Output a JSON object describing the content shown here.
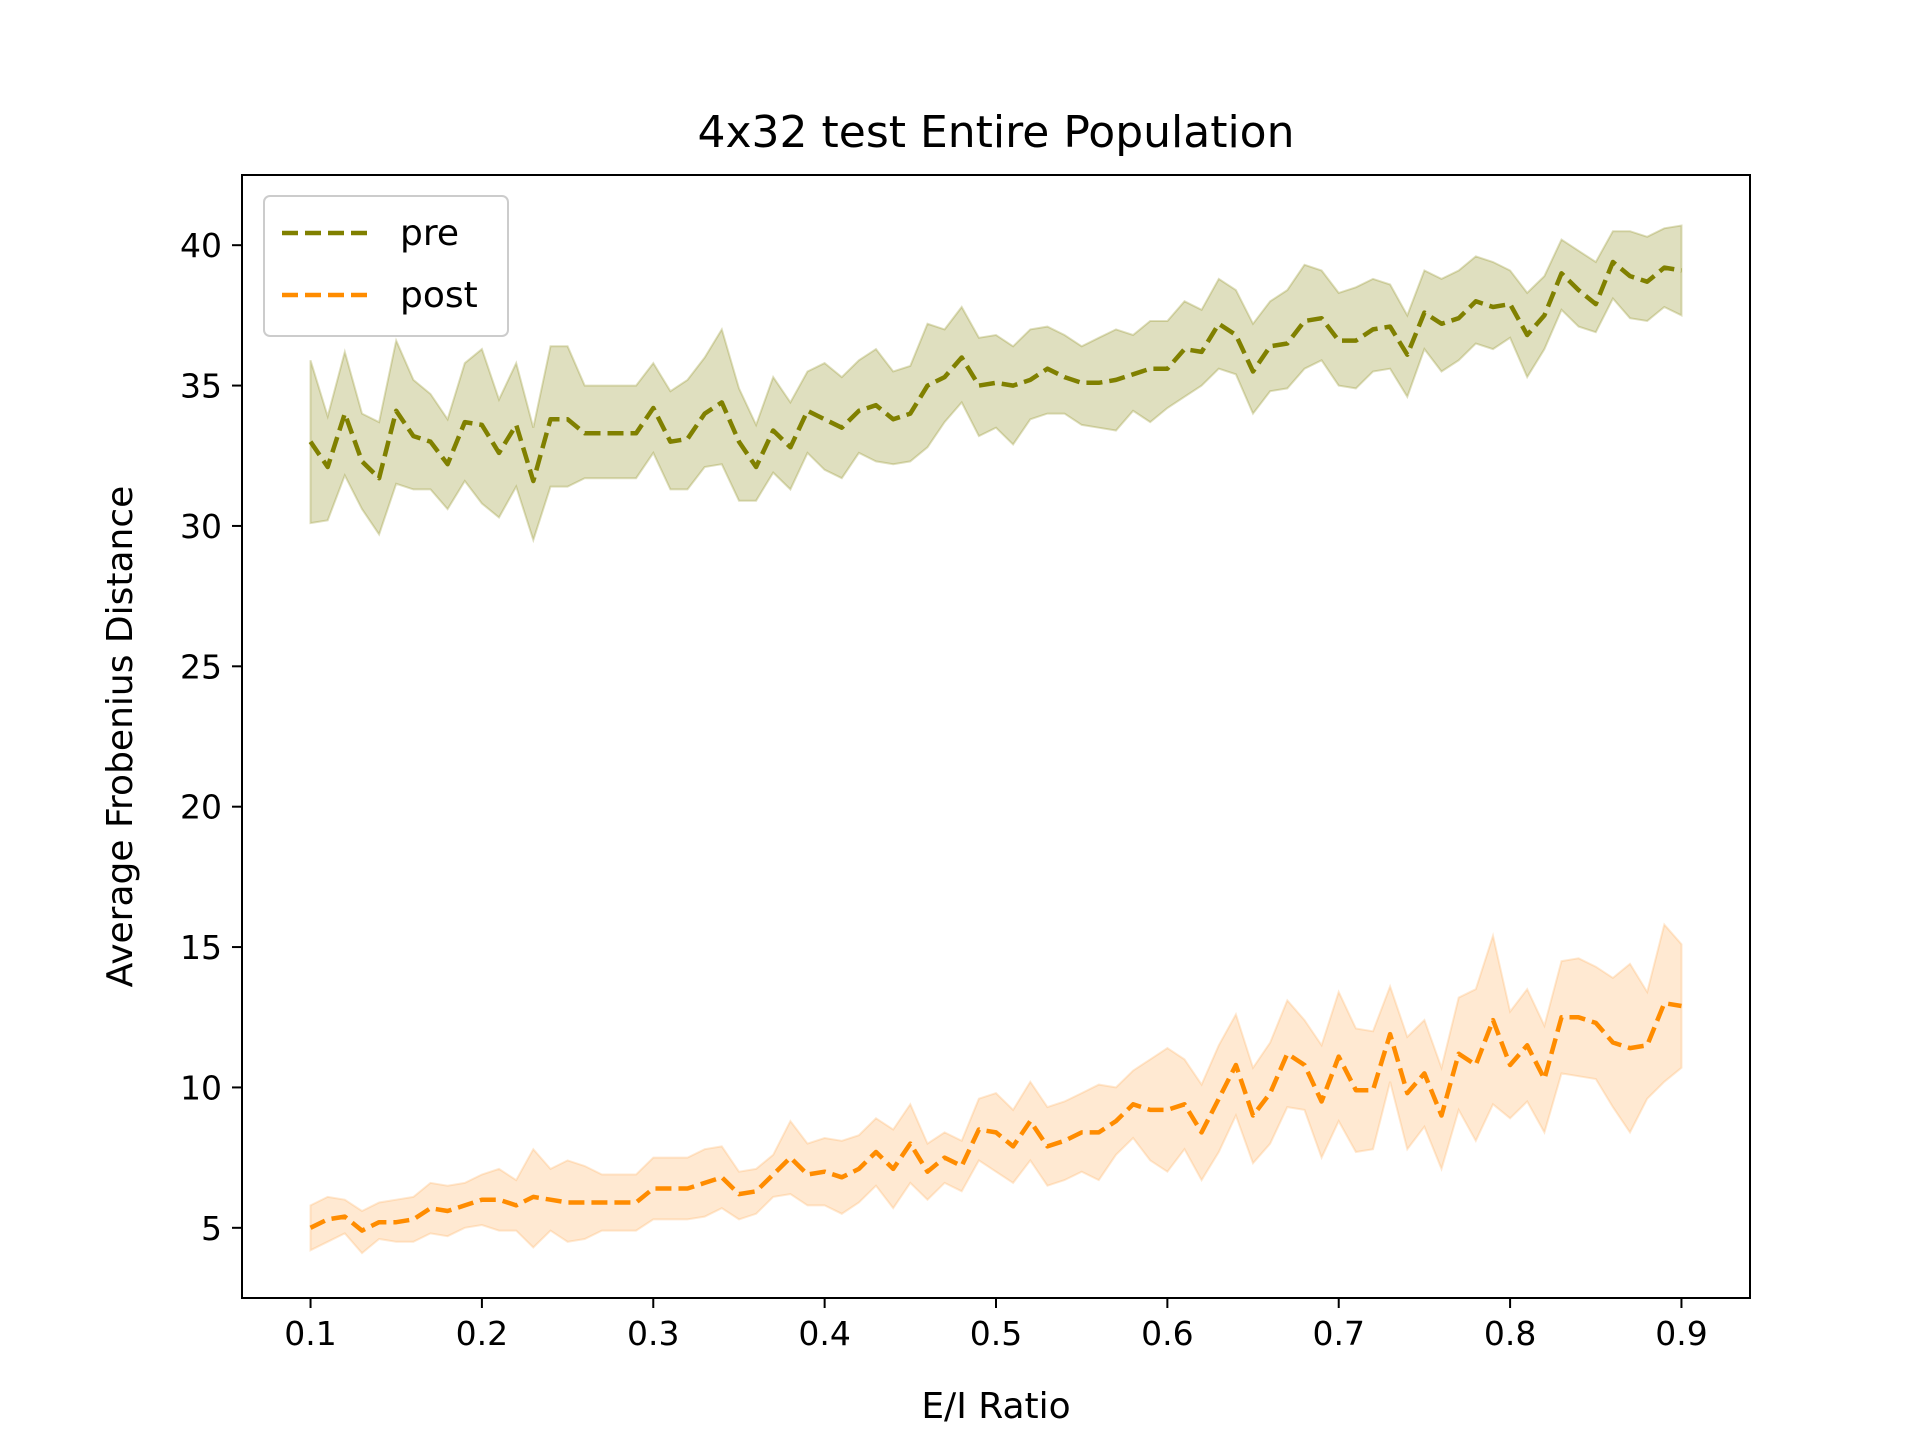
{
  "chart_data": {
    "type": "line",
    "title": "4x32 test Entire Population",
    "xlabel": "E/I Ratio",
    "ylabel": "Average Frobenius Distance",
    "xlim": [
      0.06,
      0.94
    ],
    "ylim": [
      2.5,
      42.5
    ],
    "xticks": [
      0.1,
      0.2,
      0.3,
      0.4,
      0.5,
      0.6,
      0.7,
      0.8,
      0.9
    ],
    "xtick_labels": [
      "0.1",
      "0.2",
      "0.3",
      "0.4",
      "0.5",
      "0.6",
      "0.7",
      "0.8",
      "0.9"
    ],
    "yticks": [
      5,
      10,
      15,
      20,
      25,
      30,
      35,
      40
    ],
    "ytick_labels": [
      "5",
      "10",
      "15",
      "20",
      "25",
      "30",
      "35",
      "40"
    ],
    "grid": false,
    "legend_position": "upper-left",
    "x": [
      0.1,
      0.11,
      0.12,
      0.13,
      0.14,
      0.15,
      0.16,
      0.17,
      0.18,
      0.19,
      0.2,
      0.21,
      0.22,
      0.23,
      0.24,
      0.25,
      0.26,
      0.27,
      0.28,
      0.29,
      0.3,
      0.31,
      0.32,
      0.33,
      0.34,
      0.35,
      0.36,
      0.37,
      0.38,
      0.39,
      0.4,
      0.41,
      0.42,
      0.43,
      0.44,
      0.45,
      0.46,
      0.47,
      0.48,
      0.49,
      0.5,
      0.51,
      0.52,
      0.53,
      0.54,
      0.55,
      0.56,
      0.57,
      0.58,
      0.59,
      0.6,
      0.61,
      0.62,
      0.63,
      0.64,
      0.65,
      0.66,
      0.67,
      0.68,
      0.69,
      0.7,
      0.71,
      0.72,
      0.73,
      0.74,
      0.75,
      0.76,
      0.77,
      0.78,
      0.79,
      0.8,
      0.81,
      0.82,
      0.83,
      0.84,
      0.85,
      0.86,
      0.87,
      0.88,
      0.89,
      0.9
    ],
    "series": [
      {
        "name": "pre",
        "color": "#808000",
        "fill_color": "#808000",
        "values": [
          33.0,
          32.1,
          34.0,
          32.3,
          31.7,
          34.1,
          33.2,
          33.0,
          32.2,
          33.7,
          33.6,
          32.6,
          33.6,
          31.6,
          33.8,
          33.8,
          33.3,
          33.3,
          33.3,
          33.3,
          34.2,
          33.0,
          33.1,
          34.0,
          34.4,
          33.0,
          32.1,
          33.4,
          32.8,
          34.1,
          33.8,
          33.5,
          34.1,
          34.3,
          33.8,
          34.0,
          35.0,
          35.3,
          36.0,
          35.0,
          35.1,
          35.0,
          35.2,
          35.6,
          35.3,
          35.1,
          35.1,
          35.2,
          35.4,
          35.6,
          35.6,
          36.3,
          36.2,
          37.2,
          36.8,
          35.5,
          36.4,
          36.5,
          37.3,
          37.4,
          36.6,
          36.6,
          37.0,
          37.1,
          36.1,
          37.6,
          37.2,
          37.4,
          38.0,
          37.8,
          37.9,
          36.8,
          37.5,
          39.0,
          38.4,
          37.9,
          39.4,
          38.9,
          38.7,
          39.2,
          39.1
        ],
        "upper": [
          35.9,
          33.9,
          36.2,
          34.0,
          33.7,
          36.6,
          35.2,
          34.7,
          33.8,
          35.8,
          36.3,
          34.5,
          35.8,
          33.5,
          36.4,
          36.4,
          35.0,
          35.0,
          35.0,
          35.0,
          35.8,
          34.8,
          35.2,
          36.0,
          37.0,
          34.9,
          33.6,
          35.3,
          34.4,
          35.5,
          35.8,
          35.3,
          35.9,
          36.3,
          35.5,
          35.7,
          37.2,
          37.0,
          37.8,
          36.7,
          36.8,
          36.4,
          37.0,
          37.1,
          36.8,
          36.4,
          36.7,
          37.0,
          36.8,
          37.3,
          37.3,
          38.0,
          37.7,
          38.8,
          38.4,
          37.2,
          38.0,
          38.4,
          39.3,
          39.1,
          38.3,
          38.5,
          38.8,
          38.6,
          37.5,
          39.1,
          38.8,
          39.1,
          39.6,
          39.4,
          39.1,
          38.3,
          38.9,
          40.2,
          39.8,
          39.4,
          40.5,
          40.5,
          40.3,
          40.6,
          40.7
        ],
        "lower": [
          30.1,
          30.2,
          31.8,
          30.6,
          29.7,
          31.5,
          31.3,
          31.3,
          30.6,
          31.6,
          30.8,
          30.3,
          31.4,
          29.5,
          31.4,
          31.4,
          31.7,
          31.7,
          31.7,
          31.7,
          32.6,
          31.3,
          31.3,
          32.1,
          32.2,
          30.9,
          30.9,
          31.9,
          31.3,
          32.6,
          32.0,
          31.7,
          32.6,
          32.3,
          32.2,
          32.3,
          32.8,
          33.7,
          34.4,
          33.2,
          33.5,
          32.9,
          33.8,
          34.0,
          34.0,
          33.6,
          33.5,
          33.4,
          34.1,
          33.7,
          34.2,
          34.6,
          35.0,
          35.6,
          35.4,
          34.0,
          34.8,
          34.9,
          35.6,
          35.9,
          35.0,
          34.9,
          35.5,
          35.6,
          34.6,
          36.3,
          35.5,
          35.9,
          36.5,
          36.3,
          36.7,
          35.3,
          36.3,
          37.7,
          37.1,
          36.9,
          38.1,
          37.4,
          37.3,
          37.8,
          37.5
        ]
      },
      {
        "name": "post",
        "color": "#ff8c00",
        "fill_color": "#ffa64d",
        "values": [
          5.0,
          5.3,
          5.4,
          4.9,
          5.2,
          5.2,
          5.3,
          5.7,
          5.6,
          5.8,
          6.0,
          6.0,
          5.8,
          6.1,
          6.0,
          5.9,
          5.9,
          5.9,
          5.9,
          5.9,
          6.4,
          6.4,
          6.4,
          6.6,
          6.8,
          6.2,
          6.3,
          6.9,
          7.5,
          6.9,
          7.0,
          6.8,
          7.1,
          7.7,
          7.1,
          8.0,
          7.0,
          7.5,
          7.2,
          8.5,
          8.4,
          7.9,
          8.8,
          7.9,
          8.1,
          8.4,
          8.4,
          8.8,
          9.4,
          9.2,
          9.2,
          9.4,
          8.4,
          9.6,
          10.8,
          9.0,
          9.8,
          11.2,
          10.8,
          9.5,
          11.1,
          9.9,
          9.9,
          11.9,
          9.8,
          10.5,
          9.0,
          11.2,
          10.8,
          12.4,
          10.8,
          11.5,
          10.3,
          12.5,
          12.5,
          12.3,
          11.6,
          11.4,
          11.5,
          13.0,
          12.9
        ],
        "upper": [
          5.8,
          6.1,
          6.0,
          5.6,
          5.9,
          6.0,
          6.1,
          6.6,
          6.5,
          6.6,
          6.9,
          7.1,
          6.7,
          7.8,
          7.1,
          7.4,
          7.2,
          6.9,
          6.9,
          6.9,
          7.5,
          7.5,
          7.5,
          7.8,
          7.9,
          7.0,
          7.1,
          7.6,
          8.8,
          8.0,
          8.2,
          8.1,
          8.3,
          8.9,
          8.5,
          9.4,
          8.0,
          8.4,
          8.1,
          9.6,
          9.8,
          9.2,
          10.2,
          9.3,
          9.5,
          9.8,
          10.1,
          10.0,
          10.6,
          11.0,
          11.4,
          11.0,
          10.1,
          11.5,
          12.6,
          10.7,
          11.6,
          13.1,
          12.4,
          11.5,
          13.4,
          12.1,
          12.0,
          13.6,
          11.8,
          12.4,
          10.7,
          13.2,
          13.5,
          15.4,
          12.7,
          13.5,
          12.2,
          14.5,
          14.6,
          14.3,
          13.9,
          14.4,
          13.4,
          15.8,
          15.1
        ],
        "lower": [
          4.2,
          4.5,
          4.8,
          4.1,
          4.6,
          4.5,
          4.5,
          4.8,
          4.7,
          5.0,
          5.1,
          4.9,
          4.9,
          4.3,
          4.9,
          4.5,
          4.6,
          4.9,
          4.9,
          4.9,
          5.3,
          5.3,
          5.3,
          5.4,
          5.7,
          5.3,
          5.5,
          6.1,
          6.2,
          5.8,
          5.8,
          5.5,
          5.9,
          6.5,
          5.7,
          6.6,
          6.0,
          6.6,
          6.3,
          7.4,
          7.0,
          6.6,
          7.4,
          6.5,
          6.7,
          7.0,
          6.7,
          7.6,
          8.2,
          7.4,
          7.0,
          7.8,
          6.7,
          7.7,
          9.0,
          7.3,
          8.0,
          9.3,
          9.2,
          7.5,
          8.8,
          7.7,
          7.8,
          10.2,
          7.8,
          8.6,
          7.1,
          9.2,
          8.1,
          9.4,
          8.9,
          9.5,
          8.4,
          10.5,
          10.4,
          10.3,
          9.3,
          8.4,
          9.6,
          10.2,
          10.7
        ]
      }
    ]
  }
}
